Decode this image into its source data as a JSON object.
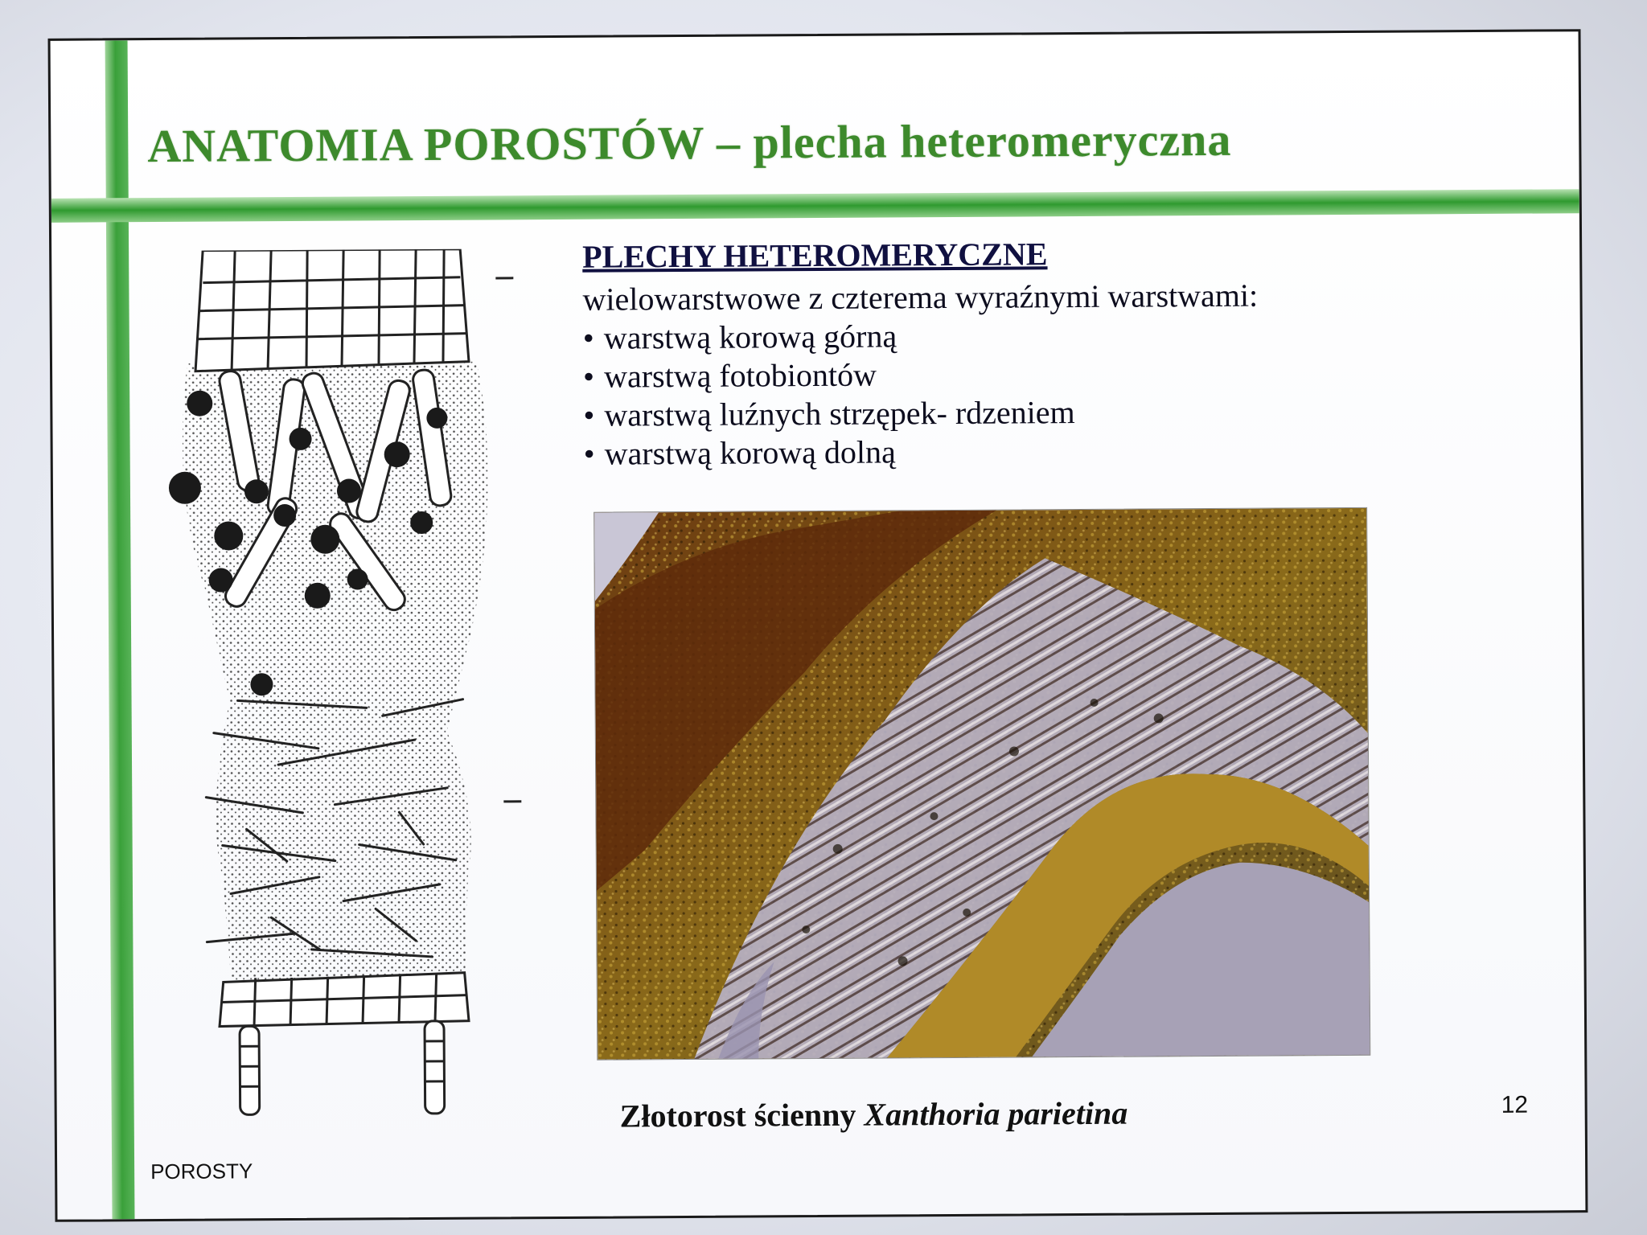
{
  "slide": {
    "title": "ANATOMIA POROSTÓW – plecha heteromeryczna",
    "subheading": "PLECHY HETEROMERYCZNE",
    "intro": "wielowarstwowe z czterema wyraźnymi warstwami:",
    "bullets": [
      "warstwą korową górną",
      "warstwą fotobiontów",
      "warstwą luźnych strzępek- rdzeniem",
      "warstwą korową dolną"
    ],
    "bullet_glyph": "•",
    "caption_common": "Złotorost ścienny",
    "caption_latin": "Xanthoria parietina",
    "page_number": "12",
    "footer": "POROSTY"
  },
  "colors": {
    "title_green": "#3d8a2c",
    "bar_green": "#3aa03a",
    "text_dark": "#0d0d1e"
  },
  "icons": {
    "diagram": "lichen-cross-section-drawing",
    "photo": "lichen-micrograph"
  }
}
